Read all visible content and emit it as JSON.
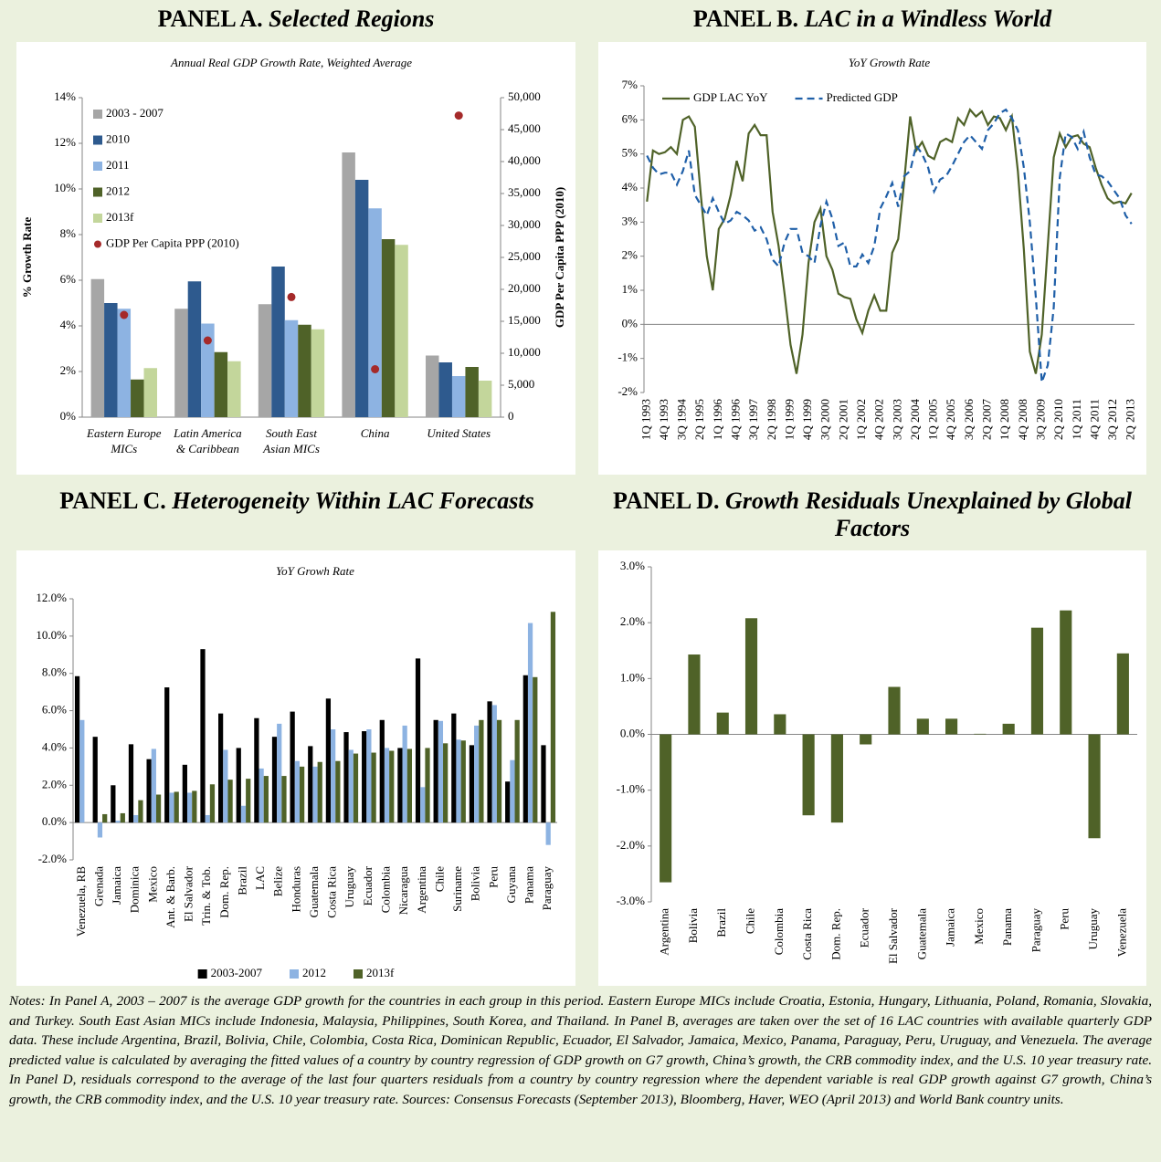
{
  "chart_data": [
    {
      "type": "bar",
      "panel": "PANEL A.",
      "title": "Selected Regions",
      "subtitle": "Annual  Real GDP Growth  Rate, Weighted Average",
      "categories": [
        [
          "Eastern Europe",
          "MICs"
        ],
        [
          "Latin America",
          "& Caribbean"
        ],
        [
          "South East",
          "Asian MICs"
        ],
        [
          "China"
        ],
        [
          "United States"
        ]
      ],
      "series": [
        {
          "name": "2003 - 2007",
          "color": "#a6a6a6",
          "values": [
            6.05,
            4.75,
            4.95,
            11.6,
            2.7
          ]
        },
        {
          "name": "2010",
          "color": "#2e5a8e",
          "values": [
            5.0,
            5.95,
            6.6,
            10.4,
            2.4
          ]
        },
        {
          "name": "2011",
          "color": "#8db3e2",
          "values": [
            4.75,
            4.1,
            4.25,
            9.15,
            1.8
          ]
        },
        {
          "name": "2012",
          "color": "#4f6228",
          "values": [
            1.65,
            2.85,
            4.05,
            7.8,
            2.2
          ]
        },
        {
          "name": "2013f",
          "color": "#c3d69b",
          "values": [
            2.15,
            2.45,
            3.85,
            7.55,
            1.6
          ]
        },
        {
          "name": "GDP Per Capita PPP (2010)",
          "color": "#a52a2a",
          "type": "scatter",
          "axis": "y2",
          "values": [
            16000,
            12000,
            18800,
            7500,
            47200
          ]
        }
      ],
      "ylim": [
        0,
        14
      ],
      "yticks": [
        {
          "value": 0,
          "label": "0%"
        },
        {
          "value": 2,
          "label": "2%"
        },
        {
          "value": 4,
          "label": "4%"
        },
        {
          "value": 6,
          "label": "6%"
        },
        {
          "value": 8,
          "label": "8%"
        },
        {
          "value": 10,
          "label": "10%"
        },
        {
          "value": 12,
          "label": "12%"
        },
        {
          "value": 14,
          "label": "14%"
        }
      ],
      "y2lim": [
        0,
        50000
      ],
      "y2ticks": [
        0,
        {
          "value": 5000,
          "label": "5,000"
        },
        {
          "value": 10000,
          "label": "10,000"
        },
        {
          "value": 15000,
          "label": "15,000"
        },
        {
          "value": 20000,
          "label": "20,000"
        },
        {
          "value": 25000,
          "label": "25,000"
        },
        {
          "value": 30000,
          "label": "30,000"
        },
        {
          "value": 35000,
          "label": "35,000"
        },
        {
          "value": 40000,
          "label": "40,000"
        },
        {
          "value": 45000,
          "label": "45,000"
        },
        {
          "value": 50000,
          "label": "50,000"
        }
      ],
      "ylabel": "% Growth Rate",
      "y2label": "GDP Per Capita PPP (2010)",
      "legend": "upper left"
    },
    {
      "type": "line",
      "panel": "PANEL B.",
      "title": "LAC in a Windless World",
      "subtitle": "YoY Growth Rate",
      "categories": [
        "1Q 1993",
        null,
        null,
        "4Q 1993",
        null,
        null,
        "3Q 1994",
        null,
        null,
        "2Q 1995",
        null,
        null,
        "1Q 1996",
        null,
        null,
        "4Q 1996",
        null,
        null,
        "3Q 1997",
        null,
        null,
        "2Q 1998",
        null,
        null,
        "1Q 1999",
        null,
        null,
        "4Q 1999",
        null,
        null,
        "3Q 2000",
        null,
        null,
        "2Q 2001",
        null,
        null,
        "1Q 2002",
        null,
        null,
        "4Q 2002",
        null,
        null,
        "3Q 2003",
        null,
        null,
        "2Q 2004",
        null,
        null,
        "1Q 2005",
        null,
        null,
        "4Q 2005",
        null,
        null,
        "3Q 2006",
        null,
        null,
        "2Q 2007",
        null,
        null,
        "1Q 2008",
        null,
        null,
        "4Q 2008",
        null,
        null,
        "3Q 2009",
        null,
        null,
        "2Q 2010",
        null,
        null,
        "1Q 2011",
        null,
        null,
        "4Q 2011",
        null,
        null,
        "3Q 2012",
        null,
        null,
        "2Q 2013"
      ],
      "series": [
        {
          "name": "GDP LAC YoY",
          "color": "#4f6228",
          "linestyle": "solid",
          "values": [
            3.6,
            5.1,
            5.0,
            5.05,
            5.2,
            5.0,
            6.0,
            6.1,
            5.8,
            3.8,
            2.0,
            1.0,
            2.8,
            3.1,
            3.8,
            4.8,
            4.2,
            5.6,
            5.85,
            5.55,
            5.55,
            3.3,
            2.3,
            0.9,
            -0.6,
            -1.45,
            -0.3,
            1.8,
            3.0,
            3.4,
            2.0,
            1.6,
            0.9,
            0.8,
            0.75,
            0.15,
            -0.25,
            0.4,
            0.85,
            0.4,
            0.4,
            2.1,
            2.5,
            4.2,
            6.1,
            5.1,
            5.35,
            4.95,
            4.85,
            5.35,
            5.45,
            5.35,
            6.05,
            5.85,
            6.3,
            6.1,
            6.25,
            5.85,
            6.1,
            6.05,
            5.7,
            6.1,
            4.5,
            2.2,
            -0.8,
            -1.45,
            -0.3,
            2.3,
            4.9,
            5.6,
            5.2,
            5.5,
            5.55,
            5.3,
            5.2,
            4.6,
            4.1,
            3.7,
            3.55,
            3.6,
            3.55,
            3.85
          ]
        },
        {
          "name": "Predicted GDP",
          "color": "#1f5fa8",
          "linestyle": "dashed",
          "values": [
            4.95,
            4.6,
            4.4,
            4.45,
            4.45,
            4.1,
            4.5,
            5.1,
            3.8,
            3.5,
            3.2,
            3.7,
            3.3,
            2.95,
            3.05,
            3.3,
            3.2,
            3.05,
            2.75,
            2.85,
            2.5,
            1.9,
            1.7,
            2.4,
            2.8,
            2.8,
            2.1,
            2.0,
            1.8,
            2.9,
            3.6,
            3.1,
            2.3,
            2.4,
            1.7,
            1.7,
            2.05,
            1.8,
            2.3,
            3.4,
            3.75,
            4.15,
            3.45,
            4.35,
            4.5,
            5.25,
            5.0,
            4.6,
            3.9,
            4.25,
            4.35,
            4.65,
            5.0,
            5.35,
            5.55,
            5.35,
            5.15,
            5.7,
            5.9,
            6.2,
            6.3,
            6.05,
            5.7,
            4.6,
            3.0,
            0.8,
            -1.7,
            -1.2,
            0.5,
            4.3,
            5.6,
            5.5,
            5.15,
            5.65,
            4.9,
            4.4,
            4.35,
            4.2,
            3.95,
            3.7,
            3.2,
            2.95
          ]
        }
      ],
      "ylim": [
        -2,
        7
      ],
      "yticks": [
        {
          "value": -2,
          "label": "-2%"
        },
        {
          "value": -1,
          "label": "-1%"
        },
        {
          "value": 0,
          "label": "0%"
        },
        {
          "value": 1,
          "label": "1%"
        },
        {
          "value": 2,
          "label": "2%"
        },
        {
          "value": 3,
          "label": "3%"
        },
        {
          "value": 4,
          "label": "4%"
        },
        {
          "value": 5,
          "label": "5%"
        },
        {
          "value": 6,
          "label": "6%"
        },
        {
          "value": 7,
          "label": "7%"
        }
      ],
      "legend": "upper left"
    },
    {
      "type": "bar",
      "panel": "PANEL C.",
      "title": "Heterogeneity Within LAC Forecasts",
      "subtitle": "YoY Growh Rate",
      "categories": [
        "Venezuela, RB",
        "Grenada",
        "Jamaica",
        "Dominica",
        "Mexico",
        "Ant. & Barb.",
        "El Salvador",
        "Trin. & Tob.",
        "Dom. Rep.",
        "Brazil",
        "LAC",
        "Belize",
        "Honduras",
        "Guatemala",
        "Costa Rica",
        "Uruguay",
        "Ecuador",
        "Colombia",
        "Nicaragua",
        "Argentina",
        "Chile",
        "Suriname",
        "Bolivia",
        "Peru",
        "Guyana",
        "Panama",
        "Paraguay"
      ],
      "series": [
        {
          "name": "2003-2007",
          "color": "#000000",
          "values": [
            7.85,
            4.6,
            2.0,
            4.2,
            3.4,
            7.25,
            3.1,
            9.3,
            5.85,
            4.0,
            5.6,
            4.6,
            5.95,
            4.1,
            6.65,
            4.85,
            4.9,
            5.5,
            4.0,
            8.8,
            5.5,
            5.85,
            4.15,
            6.5,
            2.2,
            7.9,
            4.15
          ]
        },
        {
          "name": "2012",
          "color": "#8db3e2",
          "values": [
            5.5,
            -0.8,
            0.1,
            0.4,
            3.95,
            1.6,
            1.6,
            0.4,
            3.9,
            0.9,
            2.9,
            5.3,
            3.3,
            3.0,
            5.0,
            3.9,
            5.0,
            4.0,
            5.2,
            1.9,
            5.45,
            4.45,
            5.2,
            6.3,
            3.35,
            10.7,
            -1.2
          ]
        },
        {
          "name": "2013f",
          "color": "#4f6228",
          "values": [
            0,
            0.45,
            0.5,
            1.2,
            1.5,
            1.65,
            1.7,
            2.05,
            2.3,
            2.35,
            2.5,
            2.5,
            3.0,
            3.25,
            3.3,
            3.7,
            3.75,
            3.85,
            3.95,
            4.0,
            4.25,
            4.4,
            5.5,
            5.5,
            5.5,
            7.8,
            11.3
          ]
        }
      ],
      "ylim": [
        -2,
        12
      ],
      "yticks": [
        {
          "value": -2,
          "label": "-2.0%"
        },
        {
          "value": 0,
          "label": "0.0%"
        },
        {
          "value": 2,
          "label": "2.0%"
        },
        {
          "value": 4,
          "label": "4.0%"
        },
        {
          "value": 6,
          "label": "6.0%"
        },
        {
          "value": 8,
          "label": "8.0%"
        },
        {
          "value": 10,
          "label": "10.0%"
        },
        {
          "value": 12,
          "label": "12.0%"
        }
      ],
      "legend": "lower center"
    },
    {
      "type": "bar",
      "panel": "PANEL D.",
      "title": "Growth Residuals Unexplained by Global Factors",
      "categories": [
        "Argentina",
        "Bolivia",
        "Brazil",
        "Chile",
        "Colombia",
        "Costa Rica",
        "Dom. Rep.",
        "Ecuador",
        "El Salvador",
        "Guatemala",
        "Jamaica",
        "Mexico",
        "Panama",
        "Paraguay",
        "Peru",
        "Uruguay",
        "Venezuela"
      ],
      "values": [
        -2.65,
        1.43,
        0.39,
        2.08,
        0.36,
        -1.45,
        -1.58,
        -0.18,
        0.85,
        0.28,
        0.28,
        0.01,
        0.19,
        1.91,
        2.22,
        -1.86,
        1.45
      ],
      "color": "#4f6228",
      "ylim": [
        -3,
        3
      ],
      "yticks": [
        {
          "value": -3,
          "label": "-3.0%"
        },
        {
          "value": -2,
          "label": "-2.0%"
        },
        {
          "value": -1,
          "label": "-1.0%"
        },
        {
          "value": 0,
          "label": "0.0%"
        },
        {
          "value": 1,
          "label": "1.0%"
        },
        {
          "value": 2,
          "label": "2.0%"
        },
        {
          "value": 3,
          "label": "3.0%"
        }
      ]
    }
  ],
  "notes": "Notes: In Panel A, 2003 – 2007 is the average GDP growth for the countries in each group in this period. Eastern Europe MICs include Croatia, Estonia, Hungary, Lithuania, Poland, Romania, Slovakia, and Turkey. South East Asian MICs include Indonesia, Malaysia, Philippines, South Korea, and Thailand. In Panel B, averages are taken over the set of 16 LAC countries with available quarterly GDP data. These include Argentina, Brazil, Bolivia, Chile, Colombia, Costa Rica, Dominican Republic, Ecuador, El Salvador, Jamaica, Mexico, Panama, Paraguay, Peru, Uruguay, and Venezuela. The average predicted value is calculated by averaging the fitted values of a country by country regression of GDP growth on G7 growth, China’s growth, the CRB commodity index, and the U.S. 10 year treasury rate.  In Panel D, residuals correspond to the average of the last four quarters residuals from a country by country regression where the dependent variable is real GDP growth against G7 growth, China’s growth, the CRB commodity index, and the U.S. 10 year treasury rate. Sources: Consensus Forecasts (September 2013), Bloomberg, Haver, WEO (April 2013) and World Bank country units."
}
